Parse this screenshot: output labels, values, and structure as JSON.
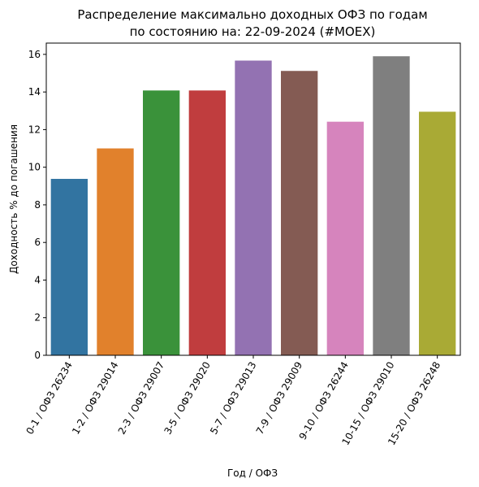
{
  "chart_data": {
    "type": "bar",
    "title": "Распределение максимально доходных ОФЗ по годам",
    "subtitle": "по состоянию на: 22-09-2024 (#MOEX)",
    "xlabel": "Год / ОФЗ",
    "ylabel": "Доходность % до погашения",
    "ylim": [
      0,
      16.6
    ],
    "yticks": [
      0,
      2,
      4,
      6,
      8,
      10,
      12,
      14,
      16
    ],
    "grid": false,
    "categories": [
      "0-1 / ОФЗ 26234",
      "1-2 / ОФЗ 29014",
      "2-3 / ОФЗ 29007",
      "3-5 / ОФЗ 29020",
      "5-7 / ОФЗ 29013",
      "7-9 / ОФЗ 29009",
      "9-10 / ОФЗ 26244",
      "10-15 / ОФЗ 29010",
      "15-20 / ОФЗ 26248"
    ],
    "values": [
      9.38,
      11.0,
      14.08,
      14.08,
      15.67,
      15.12,
      12.42,
      15.9,
      12.95
    ],
    "colors": [
      "#3274a1",
      "#e1812c",
      "#3a923a",
      "#c03d3e",
      "#9372b2",
      "#845b53",
      "#d684bd",
      "#7f7f7f",
      "#a9aa35"
    ]
  }
}
